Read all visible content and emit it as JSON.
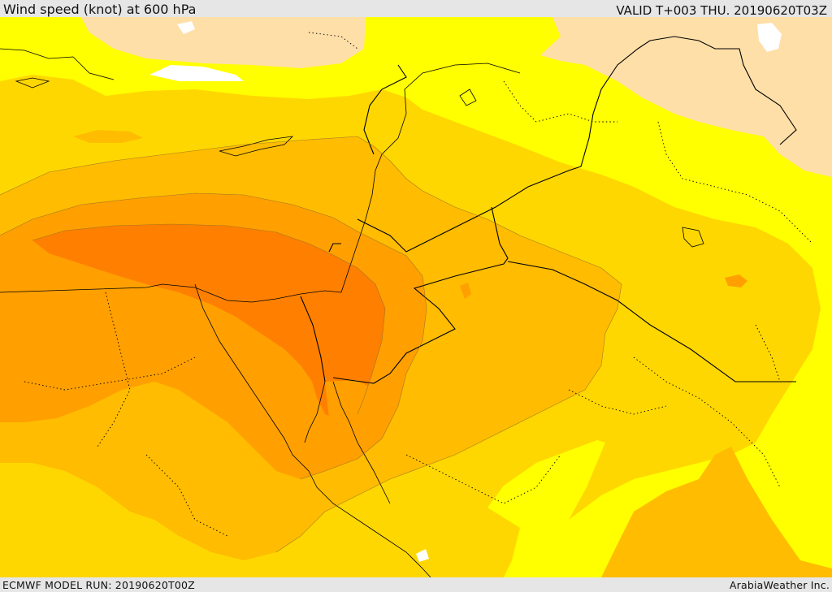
{
  "header": {
    "title": "Wind speed (knot) at 600 hPa",
    "valid": "VALID T+003 THU. 20190620T03Z"
  },
  "footer": {
    "model_run": "ECMWF MODEL RUN: 20190620T00Z",
    "credit": "ArabiaWeather Inc."
  },
  "colors": {
    "band_0": "#ffdfa8",
    "band_1": "#ffff00",
    "band_2": "#ffd700",
    "band_3": "#ffbc00",
    "band_4": "#ffa000",
    "band_5": "#ff8000",
    "no_data": "#ffffff",
    "borders": "#000000"
  }
}
